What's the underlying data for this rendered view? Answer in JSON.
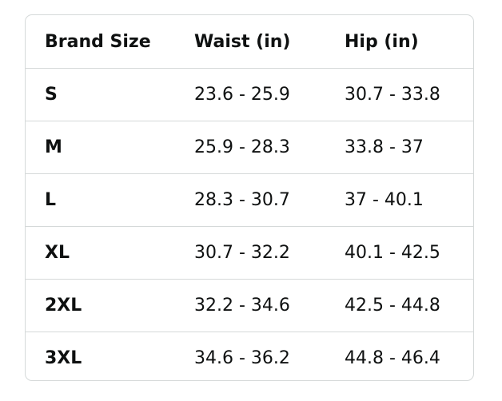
{
  "table": {
    "headers": [
      "Brand Size",
      "Waist (in)",
      "Hip (in)"
    ],
    "rows": [
      {
        "size": "S",
        "waist": "23.6 - 25.9",
        "hip": "30.7 - 33.8"
      },
      {
        "size": "M",
        "waist": "25.9 - 28.3",
        "hip": "33.8 - 37"
      },
      {
        "size": "L",
        "waist": "28.3 - 30.7",
        "hip": "37 - 40.1"
      },
      {
        "size": "XL",
        "waist": "30.7 - 32.2",
        "hip": "40.1 - 42.5"
      },
      {
        "size": "2XL",
        "waist": "32.2 - 34.6",
        "hip": "42.5 - 44.8"
      },
      {
        "size": "3XL",
        "waist": "34.6 - 36.2",
        "hip": "44.8 - 46.4"
      }
    ]
  },
  "colors": {
    "text": "#0f1111",
    "border": "#d5d9d9",
    "background": "#ffffff"
  }
}
